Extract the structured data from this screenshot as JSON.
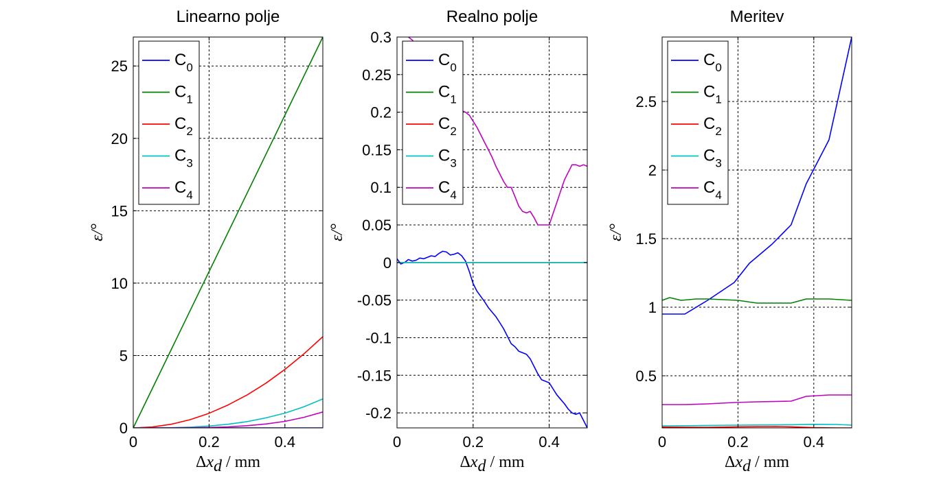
{
  "figure": {
    "colors": {
      "C0": "#0000ff",
      "C1": "#008000",
      "C2": "#ff0000",
      "C3": "#00bfbf",
      "C4": "#bf00bf",
      "grid": "#000000"
    }
  },
  "chart_data": [
    {
      "type": "line",
      "title": "Linearno polje",
      "xlabel": "Δx_d / mm",
      "ylabel": "ε/°",
      "xlim": [
        0,
        0.5
      ],
      "ylim": [
        0,
        27
      ],
      "xticks": [
        0,
        0.2,
        0.4
      ],
      "yticks": [
        0,
        5,
        10,
        15,
        20,
        25
      ],
      "xtick_labels": [
        "0",
        "0.2",
        "0.4"
      ],
      "ytick_labels": [
        "0",
        "5",
        "10",
        "15",
        "20",
        "25"
      ],
      "grid": true,
      "legend": {
        "position": "top-left",
        "entries": [
          {
            "base": "C",
            "sub": "0"
          },
          {
            "base": "C",
            "sub": "1"
          },
          {
            "base": "C",
            "sub": "2"
          },
          {
            "base": "C",
            "sub": "3"
          },
          {
            "base": "C",
            "sub": "4"
          }
        ]
      },
      "series": [
        {
          "name": "C0",
          "x": [
            0,
            0.1,
            0.2,
            0.3,
            0.4,
            0.5
          ],
          "y": [
            0,
            0,
            0,
            0,
            0,
            0
          ]
        },
        {
          "name": "C1",
          "x": [
            0,
            0.1,
            0.2,
            0.3,
            0.4,
            0.5
          ],
          "y": [
            0,
            5.4,
            10.8,
            16.2,
            21.6,
            27.0
          ]
        },
        {
          "name": "C2",
          "x": [
            0,
            0.05,
            0.1,
            0.15,
            0.2,
            0.25,
            0.3,
            0.35,
            0.4,
            0.45,
            0.5
          ],
          "y": [
            0,
            0.06,
            0.25,
            0.57,
            1.01,
            1.58,
            2.27,
            3.09,
            4.04,
            5.11,
            6.3
          ]
        },
        {
          "name": "C3",
          "x": [
            0,
            0.05,
            0.1,
            0.15,
            0.2,
            0.25,
            0.3,
            0.35,
            0.4,
            0.45,
            0.5
          ],
          "y": [
            0,
            0.002,
            0.016,
            0.054,
            0.13,
            0.25,
            0.43,
            0.69,
            1.02,
            1.46,
            2.0
          ]
        },
        {
          "name": "C4",
          "x": [
            0,
            0.05,
            0.1,
            0.15,
            0.2,
            0.25,
            0.3,
            0.35,
            0.4,
            0.45,
            0.5
          ],
          "y": [
            0,
            0,
            0.003,
            0.01,
            0.03,
            0.07,
            0.15,
            0.27,
            0.45,
            0.73,
            1.1
          ]
        }
      ]
    },
    {
      "type": "line",
      "title": "Realno polje",
      "xlabel": "Δx_d / mm",
      "ylabel": "ε/°",
      "xlim": [
        0,
        0.5
      ],
      "ylim": [
        -0.22,
        0.3
      ],
      "xticks": [
        0,
        0.2,
        0.4
      ],
      "yticks": [
        -0.2,
        -0.15,
        -0.1,
        -0.05,
        0,
        0.05,
        0.1,
        0.15,
        0.2,
        0.25,
        0.3
      ],
      "xtick_labels": [
        "0",
        "0.2",
        "0.4"
      ],
      "ytick_labels": [
        "-0.2",
        "-0.15",
        "-0.1",
        "-0.05",
        "0",
        "0.05",
        "0.1",
        "0.15",
        "0.2",
        "0.25",
        "0.3"
      ],
      "grid": true,
      "legend": {
        "position": "top-left",
        "entries": [
          {
            "base": "C",
            "sub": "0"
          },
          {
            "base": "C",
            "sub": "1"
          },
          {
            "base": "C",
            "sub": "2"
          },
          {
            "base": "C",
            "sub": "3"
          },
          {
            "base": "C",
            "sub": "4"
          }
        ]
      },
      "series": [
        {
          "name": "C0",
          "x": [
            0,
            0.01,
            0.02,
            0.03,
            0.04,
            0.05,
            0.06,
            0.07,
            0.08,
            0.09,
            0.1,
            0.11,
            0.12,
            0.13,
            0.14,
            0.15,
            0.16,
            0.17,
            0.18,
            0.19,
            0.2,
            0.21,
            0.22,
            0.23,
            0.24,
            0.25,
            0.26,
            0.27,
            0.28,
            0.29,
            0.3,
            0.31,
            0.32,
            0.33,
            0.34,
            0.35,
            0.36,
            0.37,
            0.38,
            0.39,
            0.4,
            0.41,
            0.42,
            0.43,
            0.44,
            0.45,
            0.46,
            0.47,
            0.48,
            0.49,
            0.5
          ],
          "y": [
            0.005,
            -0.002,
            0.0,
            0.004,
            0.002,
            0.003,
            0.006,
            0.005,
            0.007,
            0.009,
            0.008,
            0.012,
            0.015,
            0.014,
            0.01,
            0.011,
            0.013,
            0.009,
            0.002,
            -0.012,
            -0.028,
            -0.038,
            -0.045,
            -0.052,
            -0.06,
            -0.066,
            -0.072,
            -0.08,
            -0.088,
            -0.098,
            -0.108,
            -0.112,
            -0.118,
            -0.12,
            -0.122,
            -0.128,
            -0.138,
            -0.148,
            -0.156,
            -0.158,
            -0.16,
            -0.168,
            -0.176,
            -0.182,
            -0.188,
            -0.195,
            -0.2,
            -0.202,
            -0.2,
            -0.21,
            -0.22
          ]
        },
        {
          "name": "C1",
          "x": [
            0,
            0.5
          ],
          "y": [
            0,
            0
          ]
        },
        {
          "name": "C2",
          "x": [
            0,
            0.5
          ],
          "y": [
            0,
            0
          ]
        },
        {
          "name": "C3",
          "x": [
            0,
            0.5
          ],
          "y": [
            0,
            0
          ]
        },
        {
          "name": "C4",
          "x": [
            0,
            0.01,
            0.02,
            0.03,
            0.04,
            0.05,
            0.06,
            0.07,
            0.08,
            0.09,
            0.1,
            0.11,
            0.12,
            0.13,
            0.14,
            0.15,
            0.16,
            0.17,
            0.18,
            0.19,
            0.2,
            0.21,
            0.22,
            0.23,
            0.24,
            0.25,
            0.26,
            0.27,
            0.28,
            0.29,
            0.3,
            0.31,
            0.32,
            0.33,
            0.34,
            0.35,
            0.36,
            0.37,
            0.38,
            0.39,
            0.4,
            0.41,
            0.42,
            0.43,
            0.44,
            0.45,
            0.46,
            0.47,
            0.48,
            0.49,
            0.5
          ],
          "y": [
            0.305,
            0.307,
            0.303,
            0.3,
            0.296,
            0.29,
            0.282,
            0.272,
            0.262,
            0.252,
            0.242,
            0.232,
            0.222,
            0.214,
            0.208,
            0.207,
            0.205,
            0.202,
            0.2,
            0.196,
            0.188,
            0.18,
            0.17,
            0.16,
            0.15,
            0.14,
            0.128,
            0.118,
            0.108,
            0.1,
            0.1,
            0.088,
            0.075,
            0.068,
            0.066,
            0.068,
            0.06,
            0.05,
            0.05,
            0.05,
            0.05,
            0.065,
            0.08,
            0.095,
            0.11,
            0.12,
            0.13,
            0.13,
            0.128,
            0.13,
            0.128
          ]
        }
      ]
    },
    {
      "type": "line",
      "title": "Meritev",
      "xlabel": "Δx_d / mm",
      "ylabel": "ε/°",
      "xlim": [
        0,
        0.5
      ],
      "ylim": [
        0.12,
        2.97
      ],
      "xticks": [
        0,
        0.2,
        0.4
      ],
      "yticks": [
        0.5,
        1,
        1.5,
        2,
        2.5
      ],
      "xtick_labels": [
        "0",
        "0.2",
        "0.4"
      ],
      "ytick_labels": [
        "0.5",
        "1",
        "1.5",
        "2",
        "2.5"
      ],
      "grid": true,
      "legend": {
        "position": "top-left",
        "entries": [
          {
            "base": "C",
            "sub": "0"
          },
          {
            "base": "C",
            "sub": "1"
          },
          {
            "base": "C",
            "sub": "2"
          },
          {
            "base": "C",
            "sub": "3"
          },
          {
            "base": "C",
            "sub": "4"
          }
        ]
      },
      "series": [
        {
          "name": "C0",
          "x": [
            0,
            0.06,
            0.12,
            0.19,
            0.23,
            0.29,
            0.34,
            0.38,
            0.44,
            0.5
          ],
          "y": [
            0.95,
            0.95,
            1.05,
            1.18,
            1.32,
            1.46,
            1.6,
            1.9,
            2.22,
            2.97
          ]
        },
        {
          "name": "C1",
          "x": [
            0,
            0.02,
            0.05,
            0.09,
            0.12,
            0.2,
            0.25,
            0.3,
            0.34,
            0.38,
            0.44,
            0.5
          ],
          "y": [
            1.05,
            1.07,
            1.05,
            1.06,
            1.06,
            1.05,
            1.03,
            1.03,
            1.03,
            1.06,
            1.06,
            1.05
          ]
        },
        {
          "name": "C2",
          "x": [
            0,
            0.12,
            0.2,
            0.3,
            0.34,
            0.4,
            0.46,
            0.5
          ],
          "y": [
            0.126,
            0.124,
            0.128,
            0.13,
            0.128,
            0.122,
            0.12,
            0.12
          ]
        },
        {
          "name": "C3",
          "x": [
            0,
            0.1,
            0.2,
            0.3,
            0.34,
            0.4,
            0.46,
            0.5
          ],
          "y": [
            0.135,
            0.137,
            0.14,
            0.142,
            0.143,
            0.146,
            0.145,
            0.14
          ]
        },
        {
          "name": "C4",
          "x": [
            0,
            0.06,
            0.12,
            0.19,
            0.25,
            0.34,
            0.38,
            0.44,
            0.5
          ],
          "y": [
            0.29,
            0.29,
            0.295,
            0.305,
            0.31,
            0.315,
            0.35,
            0.36,
            0.36
          ]
        }
      ]
    }
  ]
}
